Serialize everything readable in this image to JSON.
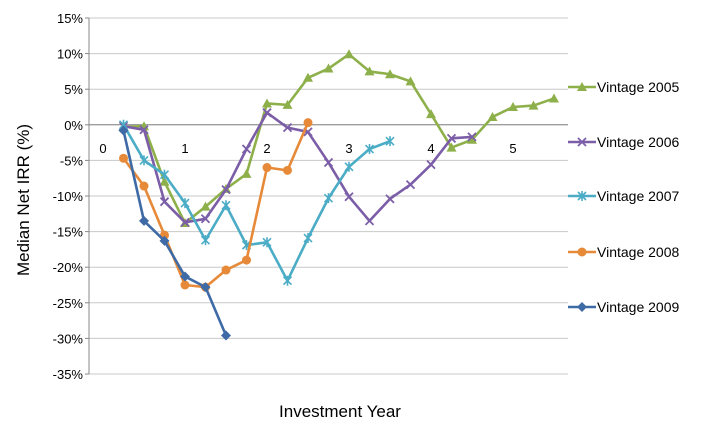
{
  "chart_data": {
    "type": "line",
    "title": "",
    "xlabel": "Investment Year",
    "ylabel": "Median Net IRR (%)",
    "xlim": [
      0,
      6
    ],
    "ylim": [
      -35,
      15
    ],
    "x_ticks": [
      0,
      1,
      2,
      3,
      4,
      5
    ],
    "x_tick_labels": [
      "0",
      "1",
      "2",
      "3",
      "4",
      "5"
    ],
    "y_ticks": [
      15,
      10,
      5,
      0,
      -5,
      -10,
      -15,
      -20,
      -25,
      -30,
      -35
    ],
    "y_tick_labels": [
      "15%",
      "10%",
      "5%",
      "0%",
      "-5%",
      "-10%",
      "-15%",
      "-20%",
      "-25%",
      "-30%",
      "-35%"
    ],
    "grid": "horizontal",
    "legend_position": "right",
    "series": [
      {
        "name": "Vintage 2005",
        "color": "#8eb04a",
        "marker": "triangle",
        "x": [
          0.25,
          0.5,
          0.75,
          1.0,
          1.25,
          1.5,
          1.75,
          2.0,
          2.25,
          2.5,
          2.75,
          3.0,
          3.25,
          3.5,
          3.75,
          4.0,
          4.25,
          4.5,
          4.75,
          5.0,
          5.25,
          5.5
        ],
        "y": [
          -0.3,
          -0.2,
          -8.0,
          -13.8,
          -11.5,
          -9.0,
          -6.9,
          3.0,
          2.8,
          6.6,
          7.9,
          9.9,
          7.5,
          7.1,
          6.1,
          1.5,
          -3.2,
          -2.1,
          1.1,
          2.5,
          2.7,
          3.7
        ]
      },
      {
        "name": "Vintage 2006",
        "color": "#7b5ea7",
        "marker": "x",
        "x": [
          0.25,
          0.5,
          0.75,
          1.0,
          1.25,
          1.5,
          1.75,
          2.0,
          2.25,
          2.5,
          2.75,
          3.0,
          3.25,
          3.5,
          3.75,
          4.0,
          4.25,
          4.5
        ],
        "y": [
          -0.2,
          -0.7,
          -10.8,
          -13.7,
          -13.2,
          -9.1,
          -3.4,
          1.7,
          -0.4,
          -1.0,
          -5.3,
          -10.1,
          -13.5,
          -10.4,
          -8.4,
          -5.6,
          -1.9,
          -1.7
        ]
      },
      {
        "name": "Vintage 2007",
        "color": "#4bacc6",
        "marker": "star",
        "x": [
          0.25,
          0.5,
          0.75,
          1.0,
          1.25,
          1.5,
          1.75,
          2.0,
          2.25,
          2.5,
          2.75,
          3.0,
          3.25,
          3.5
        ],
        "y": [
          0.0,
          -5.0,
          -7.0,
          -11.0,
          -16.2,
          -11.3,
          -16.9,
          -16.5,
          -21.9,
          -15.9,
          -10.3,
          -5.9,
          -3.4,
          -2.3
        ]
      },
      {
        "name": "Vintage 2008",
        "color": "#e68a3a",
        "marker": "circle",
        "x": [
          0.25,
          0.5,
          0.75,
          1.0,
          1.25,
          1.5,
          1.75,
          2.0,
          2.25,
          2.5
        ],
        "y": [
          -4.7,
          -8.6,
          -15.5,
          -22.5,
          -22.8,
          -20.4,
          -19.0,
          -6.0,
          -6.4,
          0.3
        ]
      },
      {
        "name": "Vintage 2009",
        "color": "#3e6aa6",
        "marker": "diamond",
        "x": [
          0.25,
          0.5,
          0.75,
          1.0,
          1.25,
          1.5
        ],
        "y": [
          -0.8,
          -13.5,
          -16.3,
          -21.3,
          -22.8,
          -29.6
        ]
      }
    ]
  }
}
